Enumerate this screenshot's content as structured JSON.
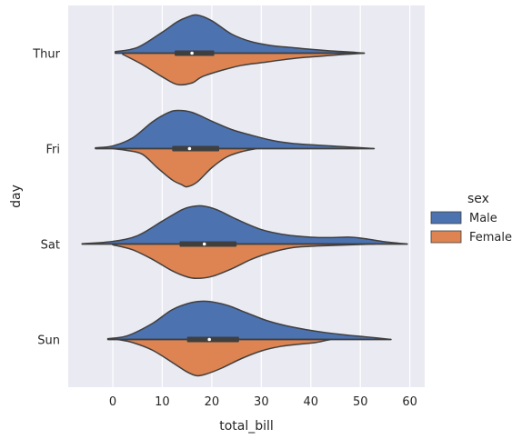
{
  "chart_data": {
    "type": "violin",
    "split": true,
    "orientation": "horizontal",
    "title": "",
    "xlabel": "total_bill",
    "ylabel": "day",
    "xlim": [
      -9,
      63
    ],
    "xticks": [
      0,
      10,
      20,
      30,
      40,
      50,
      60
    ],
    "grid": true,
    "legend": {
      "title": "sex",
      "placement": "right",
      "entries": [
        {
          "name": "Male",
          "color": "#4c72b0"
        },
        {
          "name": "Female",
          "color": "#dd8452"
        }
      ]
    },
    "categories": [
      "Thur",
      "Fri",
      "Sat",
      "Sun"
    ],
    "series": [
      {
        "name": "Male",
        "color": "#4c72b0",
        "side": "top",
        "violins": [
          {
            "day": "Thur",
            "min": 0.5,
            "max": 50.8,
            "q1": 12.5,
            "median": 16.0,
            "q3": 20.5,
            "density": [
              [
                0.5,
                0.04
              ],
              [
                5,
                0.15
              ],
              [
                10,
                0.55
              ],
              [
                13,
                0.82
              ],
              [
                15,
                0.94
              ],
              [
                17,
                1.0
              ],
              [
                20,
                0.85
              ],
              [
                24,
                0.5
              ],
              [
                28,
                0.3
              ],
              [
                32,
                0.2
              ],
              [
                36,
                0.15
              ],
              [
                40,
                0.1
              ],
              [
                44,
                0.06
              ],
              [
                48,
                0.03
              ],
              [
                50.8,
                0.0
              ]
            ]
          },
          {
            "day": "Fri",
            "min": -3.5,
            "max": 52.8,
            "q1": 12.0,
            "median": 15.5,
            "q3": 21.5,
            "density": [
              [
                -3.5,
                0.02
              ],
              [
                0,
                0.07
              ],
              [
                4,
                0.28
              ],
              [
                8,
                0.7
              ],
              [
                11,
                0.93
              ],
              [
                13,
                1.0
              ],
              [
                16,
                0.95
              ],
              [
                20,
                0.72
              ],
              [
                24,
                0.5
              ],
              [
                28,
                0.35
              ],
              [
                32,
                0.22
              ],
              [
                36,
                0.14
              ],
              [
                40,
                0.1
              ],
              [
                44,
                0.07
              ],
              [
                48,
                0.04
              ],
              [
                52.8,
                0.0
              ]
            ]
          },
          {
            "day": "Sat",
            "min": -6.2,
            "max": 59.5,
            "q1": 13.5,
            "median": 18.5,
            "q3": 25.0,
            "density": [
              [
                -6.2,
                0.01
              ],
              [
                0,
                0.07
              ],
              [
                5,
                0.22
              ],
              [
                10,
                0.6
              ],
              [
                14,
                0.9
              ],
              [
                16,
                0.98
              ],
              [
                18,
                1.0
              ],
              [
                21,
                0.9
              ],
              [
                25,
                0.65
              ],
              [
                30,
                0.38
              ],
              [
                35,
                0.24
              ],
              [
                40,
                0.18
              ],
              [
                44,
                0.17
              ],
              [
                48,
                0.18
              ],
              [
                51,
                0.14
              ],
              [
                55,
                0.06
              ],
              [
                59.5,
                0.0
              ]
            ]
          },
          {
            "day": "Sun",
            "min": -1.0,
            "max": 56.2,
            "q1": 15.0,
            "median": 19.5,
            "q3": 25.5,
            "density": [
              [
                -1,
                0.02
              ],
              [
                3,
                0.1
              ],
              [
                8,
                0.42
              ],
              [
                12,
                0.78
              ],
              [
                16,
                0.97
              ],
              [
                19,
                1.0
              ],
              [
                23,
                0.9
              ],
              [
                27,
                0.7
              ],
              [
                31,
                0.5
              ],
              [
                35,
                0.36
              ],
              [
                39,
                0.26
              ],
              [
                43,
                0.18
              ],
              [
                47,
                0.12
              ],
              [
                51,
                0.07
              ],
              [
                56.2,
                0.0
              ]
            ]
          }
        ]
      },
      {
        "name": "Female",
        "color": "#dd8452",
        "side": "bottom",
        "violins": [
          {
            "day": "Thur",
            "min": 2.0,
            "max": 50.8,
            "q1": 12.5,
            "median": 16.0,
            "q3": 20.5,
            "density": [
              [
                2,
                0.03
              ],
              [
                6,
                0.3
              ],
              [
                10,
                0.62
              ],
              [
                13,
                0.82
              ],
              [
                16,
                0.78
              ],
              [
                18,
                0.62
              ],
              [
                22,
                0.45
              ],
              [
                26,
                0.32
              ],
              [
                30,
                0.25
              ],
              [
                34,
                0.18
              ],
              [
                38,
                0.12
              ],
              [
                42,
                0.08
              ],
              [
                46,
                0.04
              ],
              [
                50.8,
                0.0
              ]
            ]
          },
          {
            "day": "Fri",
            "min": 0.0,
            "max": 29.0,
            "q1": 12.0,
            "median": 15.5,
            "q3": 21.5,
            "density": [
              [
                0,
                0.0
              ],
              [
                3,
                0.05
              ],
              [
                6,
                0.15
              ],
              [
                9,
                0.5
              ],
              [
                12,
                0.82
              ],
              [
                14,
                0.95
              ],
              [
                15,
                1.0
              ],
              [
                17,
                0.88
              ],
              [
                20,
                0.5
              ],
              [
                23,
                0.22
              ],
              [
                26,
                0.08
              ],
              [
                29,
                0.0
              ]
            ]
          },
          {
            "day": "Sat",
            "min": 0.0,
            "max": 53.0,
            "q1": 13.5,
            "median": 18.5,
            "q3": 25.0,
            "density": [
              [
                0,
                0.02
              ],
              [
                4,
                0.15
              ],
              [
                8,
                0.4
              ],
              [
                12,
                0.7
              ],
              [
                15,
                0.86
              ],
              [
                17,
                0.9
              ],
              [
                20,
                0.85
              ],
              [
                24,
                0.65
              ],
              [
                28,
                0.4
              ],
              [
                32,
                0.22
              ],
              [
                36,
                0.1
              ],
              [
                40,
                0.06
              ],
              [
                44,
                0.04
              ],
              [
                48,
                0.02
              ],
              [
                53,
                0.0
              ]
            ]
          },
          {
            "day": "Sun",
            "min": 1.0,
            "max": 44.0,
            "q1": 15.0,
            "median": 19.5,
            "q3": 25.5,
            "density": [
              [
                1,
                0.0
              ],
              [
                4,
                0.08
              ],
              [
                8,
                0.28
              ],
              [
                12,
                0.6
              ],
              [
                15,
                0.85
              ],
              [
                17,
                0.95
              ],
              [
                19,
                0.9
              ],
              [
                22,
                0.75
              ],
              [
                26,
                0.5
              ],
              [
                30,
                0.3
              ],
              [
                34,
                0.18
              ],
              [
                38,
                0.12
              ],
              [
                41,
                0.08
              ],
              [
                44,
                0.0
              ]
            ]
          }
        ]
      }
    ]
  }
}
